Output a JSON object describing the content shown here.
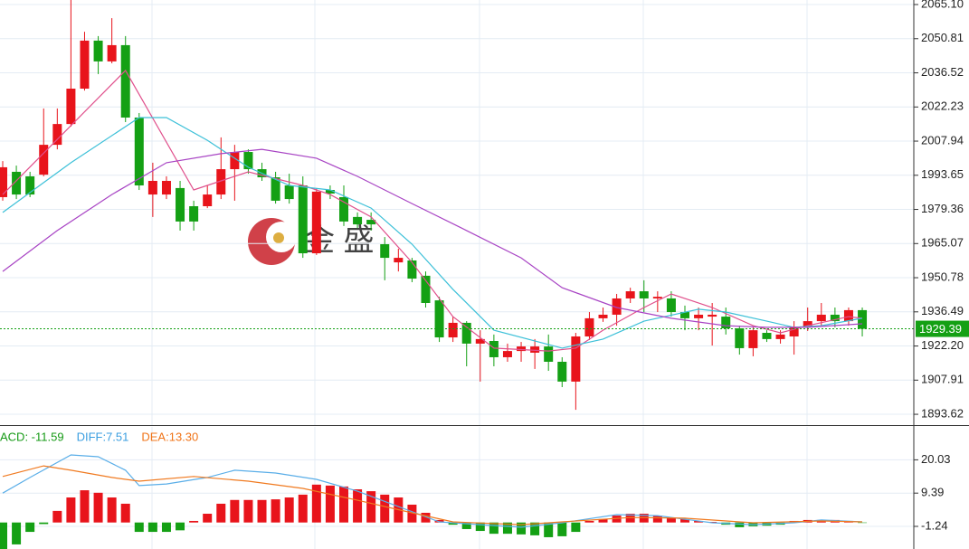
{
  "chart_data": [
    {
      "type": "candlestick",
      "open": [
        1984.5,
        1995.1,
        1993.2,
        1993.9,
        2006.4,
        2015.1,
        2029.9,
        2050.0,
        2041.3,
        2048.1,
        2017.8,
        1985.6,
        1985.6,
        1988.3,
        1980.7,
        1980.7,
        1985.6,
        1996.2,
        2003.4,
        1996.2,
        1992.8,
        1989.4,
        1989.4,
        1961.0,
        1987.5,
        1984.5,
        1976.2,
        1975.0,
        1964.8,
        1957.2,
        1958.0,
        1951.6,
        1941.3,
        1925.8,
        1931.9,
        1923.2,
        1924.3,
        1917.5,
        1920.1,
        1919.4,
        1922.0,
        1915.6,
        1907.3,
        1926.2,
        1933.8,
        1935.3,
        1942.1,
        1945.1,
        1942.1,
        1942.1,
        1936.4,
        1933.8,
        1934.5,
        1934.5,
        1929.6,
        1921.3,
        1927.7,
        1925.1,
        1926.2,
        1930.0,
        1932.6,
        1935.3,
        1932.6,
        1937.2
      ],
      "high": [
        1999.6,
        1997.7,
        1995.1,
        2021.6,
        2021.6,
        2067.0,
        2053.7,
        2051.9,
        2059.4,
        2051.9,
        2019.7,
        1998.9,
        1993.2,
        1991.3,
        1983.0,
        1989.4,
        2009.5,
        2006.4,
        2004.5,
        1998.9,
        1995.1,
        1994.3,
        1993.2,
        1988.3,
        1989.4,
        1989.4,
        1978.1,
        1978.1,
        1967.8,
        1962.9,
        1959.1,
        1953.4,
        1942.8,
        1934.5,
        1932.6,
        1928.8,
        1927.0,
        1923.2,
        1923.9,
        1925.1,
        1927.0,
        1917.5,
        1927.7,
        1936.4,
        1938.3,
        1944.0,
        1946.6,
        1949.7,
        1945.1,
        1945.1,
        1939.1,
        1938.3,
        1940.2,
        1938.3,
        1930.7,
        1930.0,
        1928.8,
        1928.8,
        1932.6,
        1938.3,
        1940.2,
        1938.3,
        1938.3,
        1938.3
      ],
      "low": [
        1983.0,
        1983.7,
        1984.5,
        1993.2,
        2004.5,
        2014.0,
        2029.1,
        2036.0,
        2040.5,
        2015.9,
        1987.5,
        1976.2,
        1983.7,
        1970.5,
        1970.5,
        1979.9,
        1983.7,
        1983.0,
        1994.3,
        1991.3,
        1981.8,
        1981.8,
        1959.1,
        1960.3,
        1983.7,
        1972.4,
        1971.6,
        1970.5,
        1949.7,
        1953.4,
        1948.9,
        1938.3,
        1923.9,
        1923.9,
        1913.7,
        1907.3,
        1913.7,
        1915.6,
        1915.6,
        1912.6,
        1911.8,
        1905.0,
        1895.5,
        1924.7,
        1932.3,
        1930.7,
        1940.2,
        1936.4,
        1936.4,
        1934.5,
        1928.8,
        1928.8,
        1922.4,
        1927.0,
        1918.6,
        1917.9,
        1923.9,
        1923.2,
        1918.6,
        1928.5,
        1930.7,
        1930.0,
        1930.7,
        1926.2
      ],
      "close": [
        1997.0,
        1985.6,
        1985.6,
        2006.4,
        2015.1,
        2029.9,
        2050.0,
        2041.3,
        2048.1,
        2017.8,
        1989.4,
        1991.3,
        1991.3,
        1974.3,
        1974.3,
        1985.6,
        1996.2,
        2003.4,
        1996.2,
        1992.8,
        1983.0,
        1983.7,
        1961.0,
        1986.8,
        1986.0,
        1974.3,
        1973.1,
        1973.1,
        1959.1,
        1959.1,
        1950.4,
        1940.2,
        1925.8,
        1931.9,
        1923.2,
        1925.1,
        1917.5,
        1920.1,
        1922.0,
        1922.0,
        1915.6,
        1907.3,
        1926.2,
        1933.8,
        1935.3,
        1942.1,
        1945.1,
        1942.1,
        1942.8,
        1936.4,
        1933.8,
        1935.3,
        1935.3,
        1929.6,
        1921.3,
        1928.8,
        1925.1,
        1927.0,
        1930.0,
        1932.6,
        1935.3,
        1932.6,
        1937.2,
        1929.39
      ],
      "up_color": "#e8141b",
      "down_color": "#14a014",
      "series": [
        {
          "color": "#e0508c",
          "x": [
            0,
            9,
            14,
            18,
            22,
            24,
            27,
            30,
            33,
            36,
            40,
            42,
            44,
            47,
            49,
            52,
            55,
            57,
            59,
            62,
            63
          ],
          "values": [
            1985.6,
            2037.5,
            1987.5,
            1995.1,
            1989.4,
            1985.6,
            1976.2,
            1957.2,
            1934.5,
            1921.3,
            1920.1,
            1921.3,
            1928.8,
            1938.3,
            1944.0,
            1938.3,
            1930.7,
            1927.7,
            1930.7,
            1934.5,
            1933.8
          ]
        },
        {
          "color": "#3cc0d8",
          "x": [
            0,
            5,
            10,
            12,
            15,
            18,
            21,
            24,
            27,
            30,
            33,
            36,
            41,
            44,
            47,
            51,
            53,
            56,
            58,
            60,
            63
          ],
          "values": [
            1978.1,
            1998.9,
            2017.8,
            2017.8,
            2008.3,
            1997.0,
            1989.4,
            1987.5,
            1979.9,
            1964.8,
            1945.9,
            1928.8,
            1921.3,
            1925.1,
            1932.6,
            1937.6,
            1936.4,
            1932.6,
            1930.0,
            1930.7,
            1933.8
          ]
        },
        {
          "color": "#a844c4",
          "x": [
            0,
            4,
            8,
            12,
            16,
            19,
            23,
            26,
            30,
            34,
            38,
            41,
            45,
            49,
            53,
            56,
            59,
            63
          ],
          "values": [
            1953.4,
            1970.5,
            1985.6,
            1998.9,
            2002.7,
            2004.5,
            2000.8,
            1993.2,
            1981.8,
            1970.5,
            1959.1,
            1946.6,
            1938.3,
            1933.8,
            1930.7,
            1930.0,
            1930.0,
            1931.5
          ]
        }
      ],
      "ylim": [
        1889.1,
        2067.0
      ],
      "yticks": [
        {
          "value": 2065.1,
          "label": "2065.10"
        },
        2050.81,
        2036.52,
        2022.23,
        2007.94,
        1993.65,
        1979.36,
        1965.07,
        1950.78,
        1936.49,
        {
          "value": 1922.2,
          "label": "1922.20"
        },
        1907.91,
        1893.62
      ],
      "grid": true,
      "last_price": 1929.39,
      "last_price_color": "#14a014",
      "watermark": "金 盛"
    },
    {
      "type": "macd",
      "legend": [
        {
          "label": "ACD: -11.59",
          "color": "#169a16"
        },
        {
          "label": "DIFF:7.51",
          "color": "#3a9ee0"
        },
        {
          "label": "DEA:13.30",
          "color": "#f07418"
        }
      ],
      "histogram": [
        -8.5,
        -7.0,
        -3.0,
        -0.5,
        3.7,
        8.0,
        10.3,
        9.5,
        8.0,
        6.0,
        -3.0,
        -3.0,
        -3.0,
        -2.5,
        0.5,
        2.8,
        6.0,
        7.2,
        7.2,
        7.2,
        7.4,
        8.0,
        8.9,
        12.1,
        11.8,
        11.5,
        10.6,
        10.0,
        8.9,
        8.0,
        5.7,
        3.1,
        0.8,
        -0.7,
        -2.1,
        -2.7,
        -3.6,
        -3.6,
        -3.8,
        -4.1,
        -4.7,
        -4.4,
        -3.0,
        0.5,
        1.1,
        2.2,
        2.8,
        2.8,
        2.2,
        1.6,
        1.1,
        0.5,
        0.2,
        -0.7,
        -1.5,
        -1.2,
        -1.0,
        -0.7,
        0.5,
        0.8,
        0.8,
        0.8,
        0.5,
        -0.1
      ],
      "series": [
        {
          "color": "#5aaee8",
          "x": [
            0,
            2,
            5,
            7,
            9,
            10,
            12,
            15,
            17,
            20,
            23,
            26,
            29,
            32,
            35,
            38,
            41,
            45,
            48,
            52,
            55,
            58,
            60,
            63
          ],
          "values": [
            9.4,
            14.4,
            21.6,
            21.0,
            16.7,
            11.8,
            12.3,
            14.4,
            16.7,
            15.8,
            13.8,
            10.0,
            5.1,
            0.2,
            -0.7,
            -1.5,
            -0.1,
            2.5,
            2.2,
            -0.1,
            -0.7,
            -0.1,
            0.8,
            0.2
          ]
        },
        {
          "color": "#f07a20",
          "x": [
            0,
            3,
            5,
            8,
            10,
            14,
            18,
            22,
            26,
            30,
            33,
            38,
            41,
            46,
            50,
            55,
            60,
            63
          ],
          "values": [
            14.7,
            18.1,
            16.7,
            14.4,
            13.2,
            14.7,
            13.2,
            10.9,
            7.1,
            3.1,
            0.2,
            -0.7,
            0.2,
            1.6,
            1.4,
            -0.1,
            0.5,
            0.2
          ]
        }
      ],
      "ylim": [
        -8.47,
        30.55
      ],
      "yticks": [
        20.03,
        9.39,
        -1.24
      ],
      "grid": true
    }
  ]
}
